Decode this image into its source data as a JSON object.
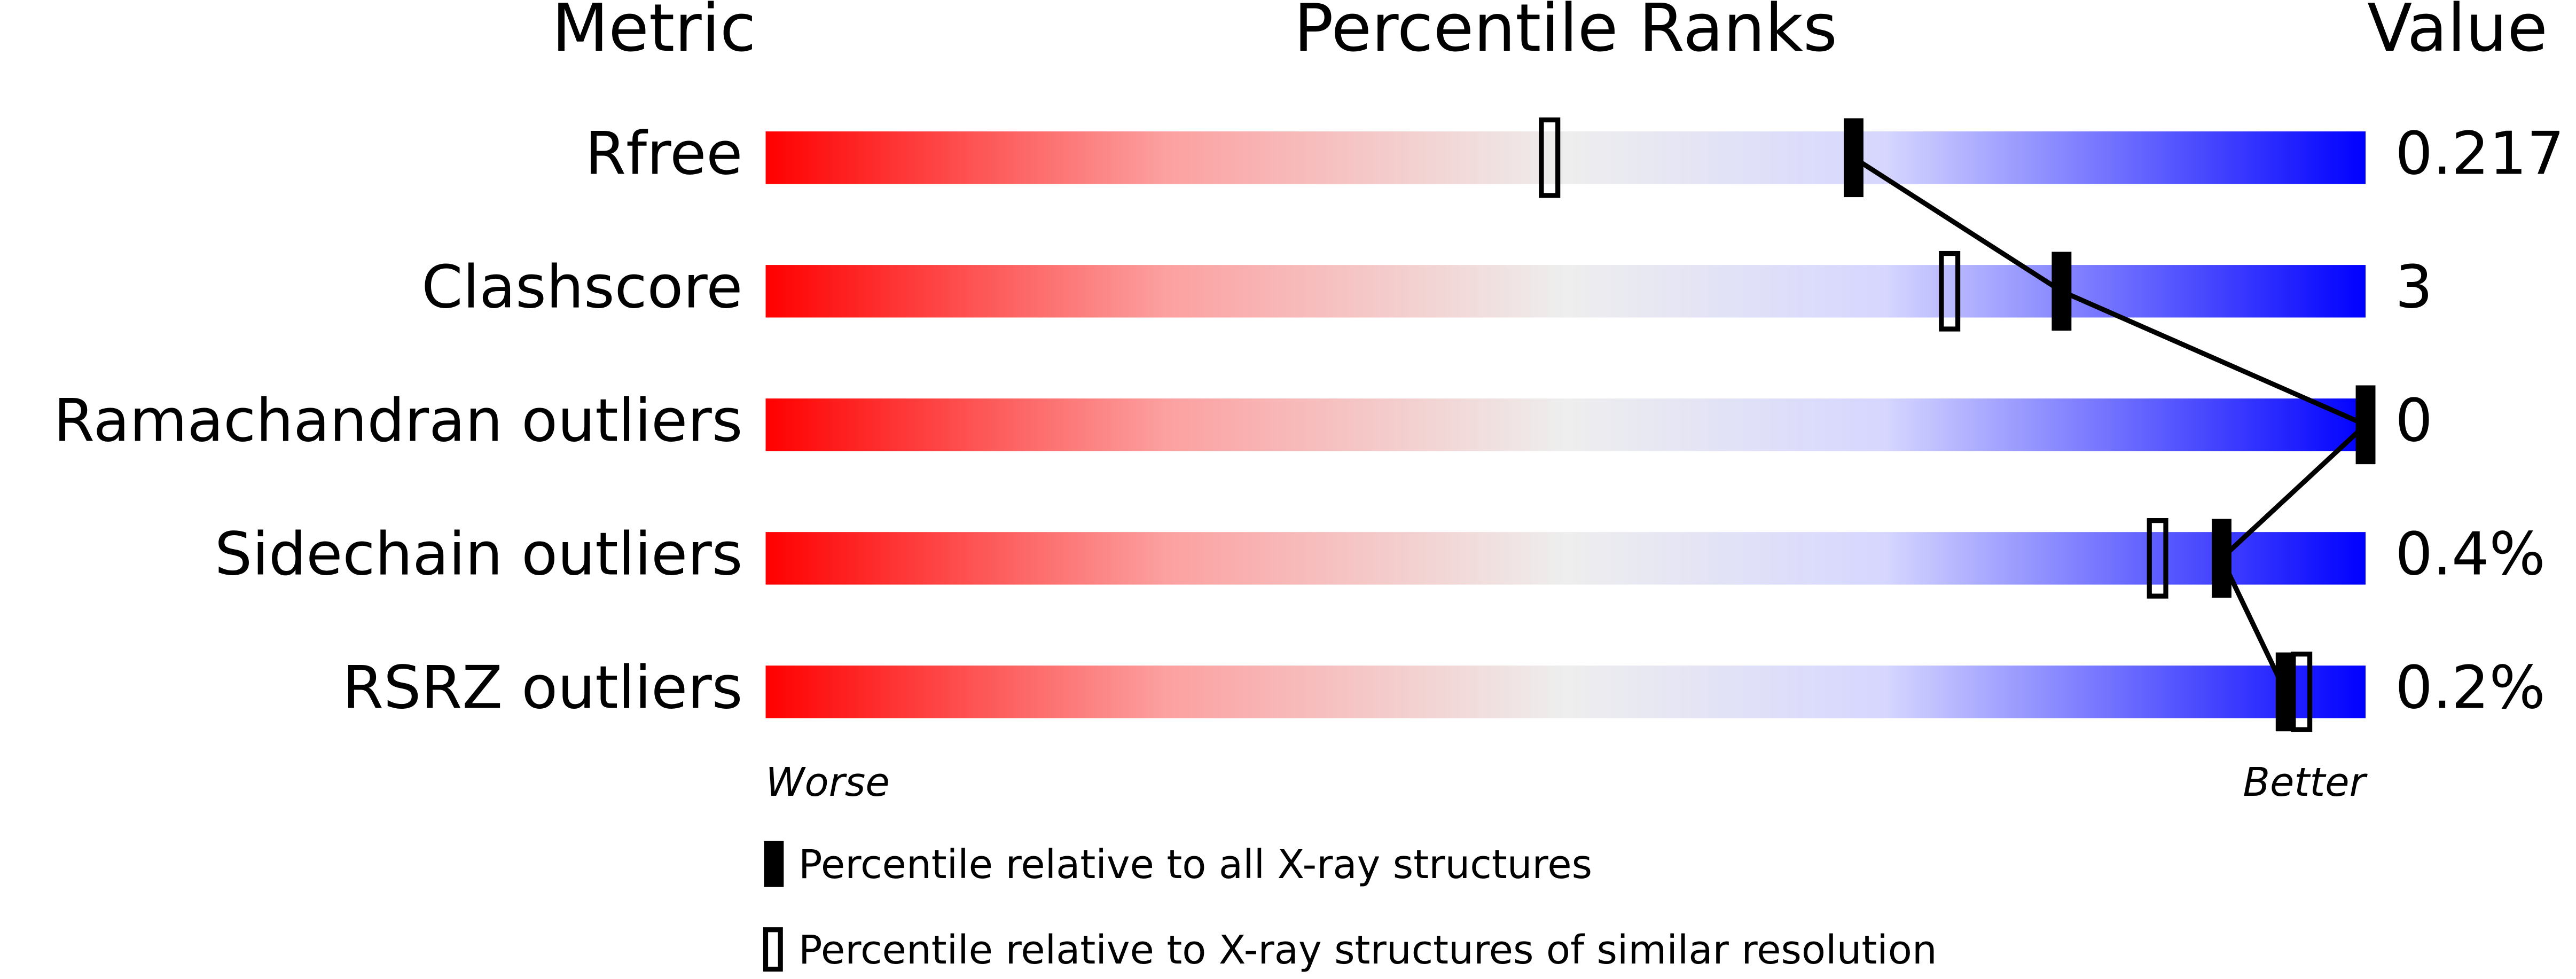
{
  "chart_data": {
    "type": "percentile",
    "headers": {
      "metric": "Metric",
      "ranks": "Percentile Ranks",
      "value": "Value"
    },
    "categories": [
      "Rfree",
      "Clashscore",
      "Ramachandran outliers",
      "Sidechain outliers",
      "RSRZ outliers"
    ],
    "metric_values": [
      "0.217",
      "3",
      "0",
      "0.4%",
      "0.2%"
    ],
    "series": [
      {
        "name": "Percentile relative to all X-ray structures",
        "color": "#000000",
        "style": "filled",
        "values": [
          68,
          81,
          100,
          91,
          95
        ]
      },
      {
        "name": "Percentile relative to X-ray structures of similar resolution",
        "color": "#000000",
        "style": "open",
        "values": [
          49,
          74,
          null,
          87,
          96
        ]
      }
    ],
    "xlim": [
      0,
      100
    ],
    "scale_labels": [
      "Worse",
      "Better"
    ]
  }
}
